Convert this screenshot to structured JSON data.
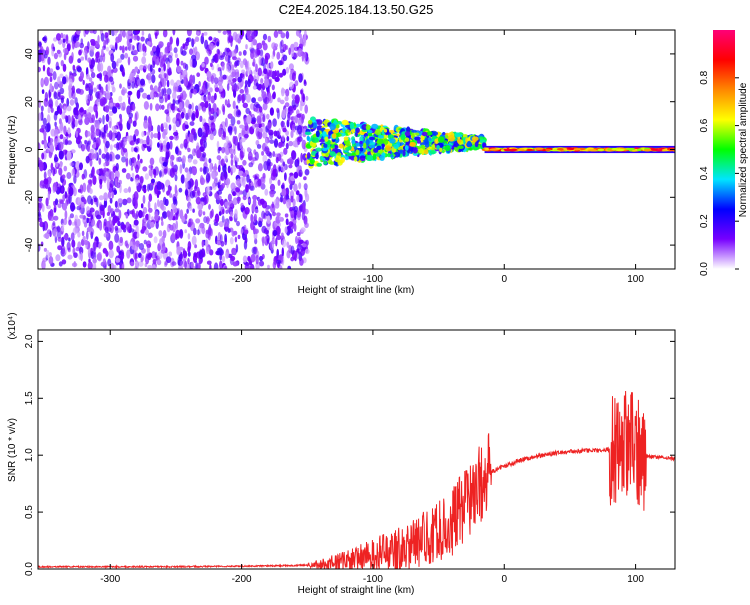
{
  "title": "C2E4.2025.184.13.50.G25",
  "chart_data": [
    {
      "type": "heatmap",
      "xlabel": "Height of straight line (km)",
      "ylabel": "Frequency (Hz)",
      "xlim": [
        -355,
        130
      ],
      "ylim": [
        -50,
        50
      ],
      "x_ticks": [
        -300,
        -200,
        -100,
        0,
        100
      ],
      "x_tick_labels": [
        "-300",
        "-200",
        "-100",
        "0",
        "100"
      ],
      "y_ticks": [
        -40,
        -20,
        0,
        20,
        40
      ],
      "y_tick_labels": [
        "-40",
        "-20",
        "0",
        "20",
        "40"
      ],
      "colorbar": {
        "label": "Normalized spectral amplitude",
        "range": [
          0,
          1
        ],
        "ticks": [
          0.0,
          0.2,
          0.4,
          0.6,
          0.8
        ],
        "tick_labels": [
          "0.0",
          "0.2",
          "0.4",
          "0.6",
          "0.8"
        ],
        "stops": [
          "#ffffff",
          "#7700ff",
          "#0000ff",
          "#00e5ff",
          "#00ff00",
          "#ffff00",
          "#ff8800",
          "#ff0000",
          "#ff0077"
        ]
      },
      "regions": [
        {
          "x": [
            -355,
            -150
          ],
          "freq": [
            -50,
            50
          ],
          "description": "broadband noise",
          "amplitude": 0.1
        },
        {
          "x": [
            -150,
            -15
          ],
          "freq": [
            -10,
            10
          ],
          "description": "emerging signal",
          "amplitude": 0.4
        },
        {
          "x": [
            -15,
            130
          ],
          "freq": [
            -1,
            1
          ],
          "description": "strong narrowband signal",
          "amplitude": 0.85
        }
      ]
    },
    {
      "type": "line",
      "xlabel": "Height of straight line (km)",
      "ylabel": "SNR (10 * v/v)",
      "y_multiplier": "(x10⁴)",
      "xlim": [
        -355,
        130
      ],
      "ylim": [
        0,
        2.1
      ],
      "x_ticks": [
        -300,
        -200,
        -100,
        0,
        100
      ],
      "x_tick_labels": [
        "-300",
        "-200",
        "-100",
        "0",
        "100"
      ],
      "y_ticks": [
        0,
        0.5,
        1.0,
        1.5,
        2.0
      ],
      "y_tick_labels": [
        "0.0",
        "0.5",
        "1.0",
        "1.5",
        "2.0"
      ],
      "color": "#ee2222",
      "series": [
        {
          "x": [
            -355,
            -300,
            -250,
            -200,
            -160,
            -140,
            -120,
            -100,
            -90,
            -80,
            -70,
            -60,
            -50,
            -40,
            -35,
            -30,
            -25,
            -20,
            -15,
            -10,
            -5,
            0,
            10,
            20,
            30,
            40,
            50,
            60,
            70,
            80,
            85,
            88,
            90,
            95,
            100,
            103,
            106,
            110,
            120,
            130
          ],
          "y": [
            0.02,
            0.02,
            0.02,
            0.025,
            0.03,
            0.04,
            0.07,
            0.12,
            0.15,
            0.18,
            0.22,
            0.27,
            0.33,
            0.4,
            0.5,
            0.55,
            0.65,
            0.72,
            0.8,
            0.85,
            0.88,
            0.9,
            0.95,
            0.98,
            1.0,
            1.02,
            1.03,
            1.04,
            1.04,
            1.05,
            1.06,
            1.15,
            1.1,
            1.07,
            1.06,
            1.02,
            1.0,
            0.99,
            0.98,
            0.97
          ]
        }
      ]
    }
  ]
}
